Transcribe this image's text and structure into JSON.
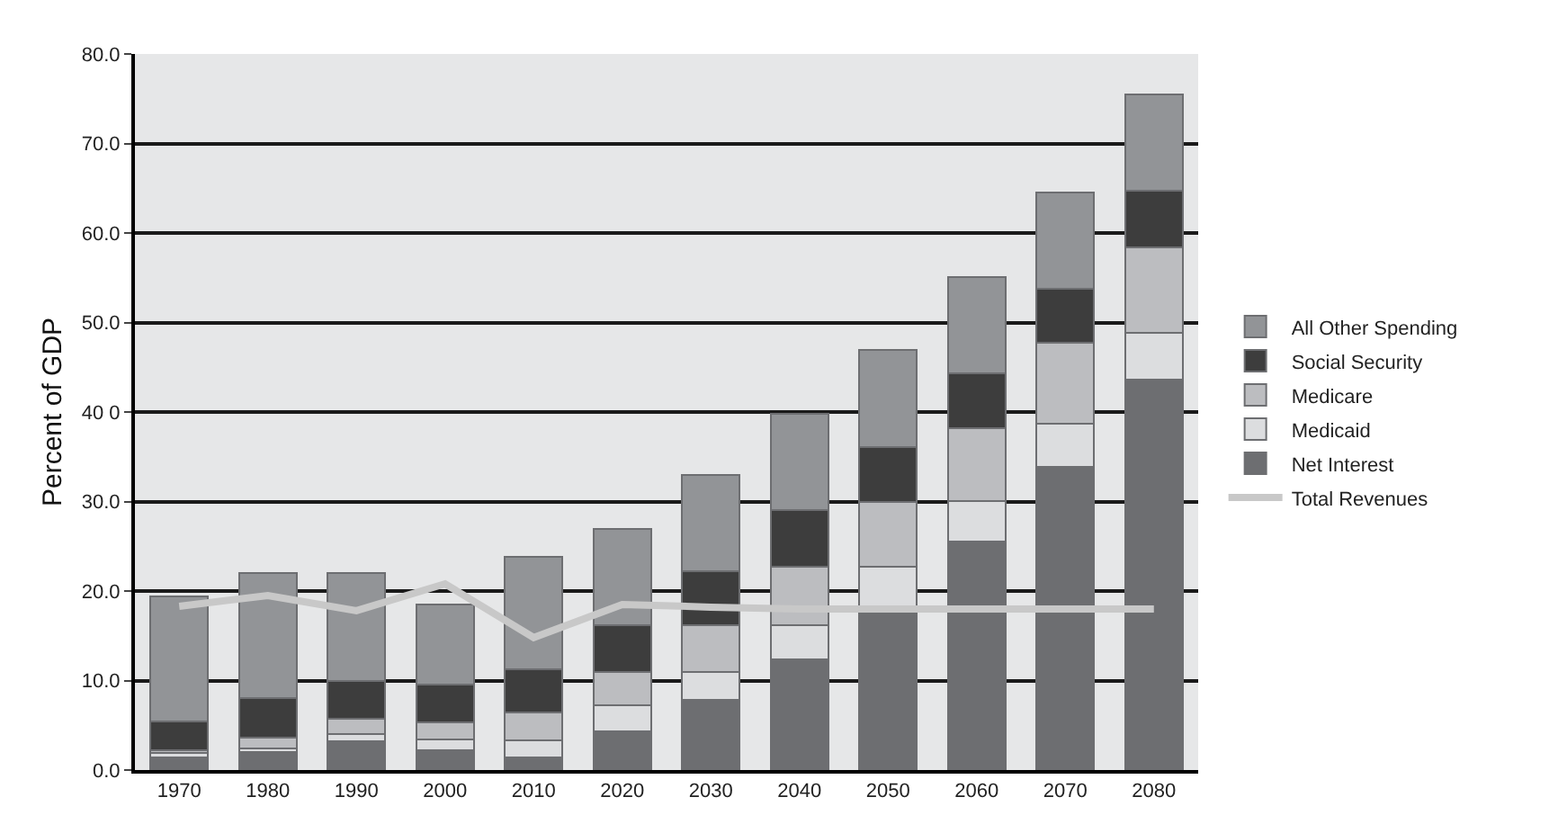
{
  "chart_data": {
    "type": "bar",
    "stacked": true,
    "ylabel": "Percent of GDP",
    "categories": [
      "1970",
      "1980",
      "1990",
      "2000",
      "2010",
      "2020",
      "2030",
      "2040",
      "2050",
      "2060",
      "2070",
      "2080"
    ],
    "series": [
      {
        "name": "Net Interest",
        "color": "#6d6e71",
        "values": [
          1.4,
          2.0,
          3.2,
          2.2,
          1.4,
          4.3,
          7.8,
          12.4,
          17.5,
          25.5,
          33.9,
          43.6
        ]
      },
      {
        "name": "Medicaid",
        "color": "#dcdddf",
        "values": [
          0.5,
          0.4,
          0.8,
          1.2,
          1.9,
          2.9,
          3.2,
          3.8,
          5.2,
          4.6,
          4.8,
          5.2
        ]
      },
      {
        "name": "Medicare",
        "color": "#bcbdc0",
        "values": [
          0.3,
          1.2,
          1.7,
          1.9,
          3.1,
          3.8,
          5.2,
          6.5,
          7.3,
          8.1,
          9.0,
          9.6
        ]
      },
      {
        "name": "Social Security",
        "color": "#3d3d3d",
        "values": [
          3.2,
          4.4,
          4.3,
          4.2,
          4.9,
          5.2,
          6.0,
          6.3,
          6.1,
          6.1,
          6.1,
          6.3
        ]
      },
      {
        "name": "All Other Spending",
        "color": "#929497",
        "values": [
          14.0,
          14.0,
          12.0,
          9.0,
          12.5,
          10.7,
          10.8,
          10.8,
          10.8,
          10.8,
          10.7,
          10.8
        ]
      },
      {
        "name": "Total Revenues",
        "type": "line",
        "color": "#c8c8c8",
        "values": [
          18.3,
          19.5,
          17.8,
          20.8,
          14.8,
          18.5,
          18.2,
          18.0,
          18.0,
          18.0,
          18.0,
          18.0
        ]
      }
    ],
    "ylim": [
      0,
      80
    ],
    "yticks": [
      {
        "value": 0,
        "label": "0.0"
      },
      {
        "value": 10,
        "label": "10.0"
      },
      {
        "value": 20,
        "label": "20.0"
      },
      {
        "value": 30,
        "label": "30.0"
      },
      {
        "value": 40,
        "label": "40 0"
      },
      {
        "value": 50,
        "label": "50.0"
      },
      {
        "value": 60,
        "label": "60.0"
      },
      {
        "value": 70,
        "label": "70.0"
      },
      {
        "value": 80,
        "label": "80.0"
      }
    ],
    "grid": "y",
    "legend": "right",
    "marker": "none",
    "line_style": "solid"
  }
}
